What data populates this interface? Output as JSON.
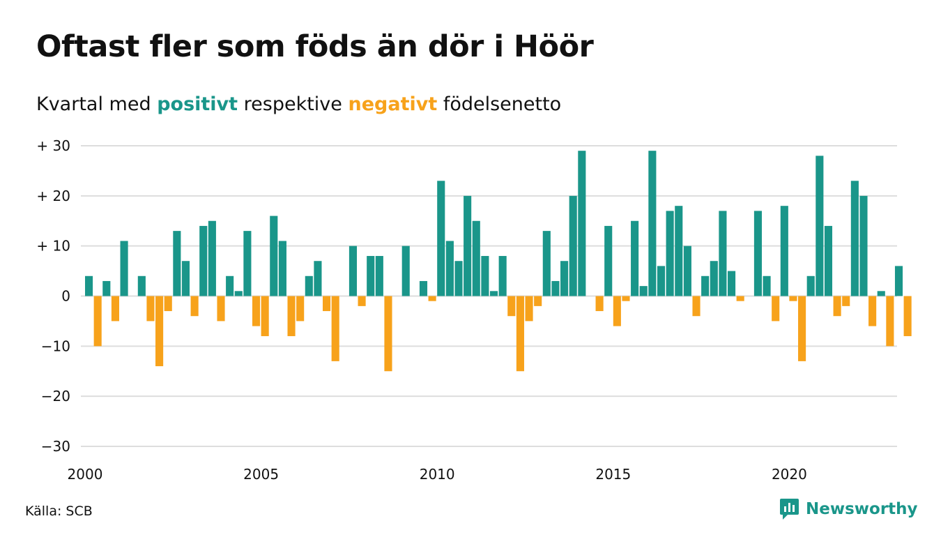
{
  "title": "Oftast fler som föds än dör i Höör",
  "subtitle": {
    "prefix": "Kvartal med ",
    "positive_word": "positivt",
    "middle": " respektive ",
    "negative_word": "negativt",
    "suffix": " födelsenetto"
  },
  "colors": {
    "positive": "#1a968a",
    "negative": "#f7a21b",
    "grid": "#dddddd",
    "brand": "#1a968a"
  },
  "source": "Källa: SCB",
  "brand": {
    "name": "Newsworthy",
    "icon": "newsworthy-logo-icon"
  },
  "chart_data": {
    "type": "bar",
    "x_start_year": 2000,
    "periods_per_year": 4,
    "xticks": [
      {
        "value": 2000,
        "label": "2000"
      },
      {
        "value": 2005,
        "label": "2005"
      },
      {
        "value": 2010,
        "label": "2010"
      },
      {
        "value": 2015,
        "label": "2015"
      },
      {
        "value": 2020,
        "label": "2020"
      }
    ],
    "yticks": [
      {
        "value": 30,
        "label": "+ 30"
      },
      {
        "value": 20,
        "label": "+ 20"
      },
      {
        "value": 10,
        "label": "+ 10"
      },
      {
        "value": 0,
        "label": "0"
      },
      {
        "value": -10,
        "label": "−10"
      },
      {
        "value": -20,
        "label": "−20"
      },
      {
        "value": -30,
        "label": "−30"
      }
    ],
    "ylim": [
      -30,
      30
    ],
    "grid": true,
    "values": [
      4,
      -10,
      3,
      -5,
      11,
      0,
      4,
      -5,
      -14,
      -3,
      13,
      7,
      -4,
      14,
      15,
      -5,
      4,
      1,
      13,
      -6,
      -8,
      16,
      11,
      -8,
      -5,
      4,
      7,
      -3,
      -13,
      0,
      10,
      -2,
      8,
      8,
      -15,
      0,
      10,
      0,
      3,
      -1,
      23,
      11,
      7,
      20,
      15,
      8,
      1,
      8,
      -4,
      -15,
      -5,
      -2,
      13,
      3,
      7,
      20,
      29,
      0,
      -3,
      14,
      -6,
      -1,
      15,
      2,
      29,
      6,
      17,
      18,
      10,
      -4,
      4,
      7,
      17,
      5,
      -1,
      0,
      17,
      4,
      -5,
      18,
      -1,
      -13,
      4,
      28,
      14,
      -4,
      -2,
      23,
      20,
      -6,
      1,
      -10,
      6,
      -8
    ]
  }
}
